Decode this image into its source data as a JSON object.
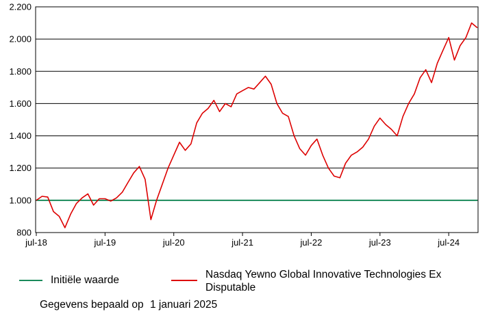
{
  "chart_data": {
    "type": "line",
    "ylim": [
      800,
      2200
    ],
    "y_ticks": [
      800,
      1000,
      1200,
      1400,
      1600,
      1800,
      2000,
      2200
    ],
    "y_tick_labels": [
      "800",
      "1.000",
      "1.200",
      "1.400",
      "1.600",
      "1.800",
      "2.000",
      "2.200"
    ],
    "x_range": [
      "2018-07",
      "2024-12"
    ],
    "x_tick_labels": [
      "jul-18",
      "jul-19",
      "jul-20",
      "jul-21",
      "jul-22",
      "jul-23",
      "jul-24"
    ],
    "grid": "horizontal",
    "series": [
      {
        "name": "Initiële waarde",
        "color": "#1a8a5a",
        "points": [
          [
            "2018-07",
            1000
          ],
          [
            "2024-12",
            1000
          ]
        ]
      },
      {
        "name": "Nasdaq Yewno Global Innovative Technologies Ex Disputable",
        "color": "#dd0000",
        "points": [
          [
            "2018-07",
            1000
          ],
          [
            "2018-08",
            1025
          ],
          [
            "2018-09",
            1020
          ],
          [
            "2018-10",
            930
          ],
          [
            "2018-11",
            900
          ],
          [
            "2018-12",
            830
          ],
          [
            "2019-01",
            915
          ],
          [
            "2019-02",
            980
          ],
          [
            "2019-03",
            1015
          ],
          [
            "2019-04",
            1040
          ],
          [
            "2019-05",
            970
          ],
          [
            "2019-06",
            1010
          ],
          [
            "2019-07",
            1010
          ],
          [
            "2019-08",
            995
          ],
          [
            "2019-09",
            1015
          ],
          [
            "2019-10",
            1050
          ],
          [
            "2019-11",
            1110
          ],
          [
            "2019-12",
            1170
          ],
          [
            "2020-01",
            1210
          ],
          [
            "2020-02",
            1130
          ],
          [
            "2020-03",
            880
          ],
          [
            "2020-04",
            1000
          ],
          [
            "2020-05",
            1100
          ],
          [
            "2020-06",
            1200
          ],
          [
            "2020-07",
            1280
          ],
          [
            "2020-08",
            1360
          ],
          [
            "2020-09",
            1310
          ],
          [
            "2020-10",
            1350
          ],
          [
            "2020-11",
            1480
          ],
          [
            "2020-12",
            1540
          ],
          [
            "2021-01",
            1570
          ],
          [
            "2021-02",
            1620
          ],
          [
            "2021-03",
            1550
          ],
          [
            "2021-04",
            1600
          ],
          [
            "2021-05",
            1580
          ],
          [
            "2021-06",
            1660
          ],
          [
            "2021-07",
            1680
          ],
          [
            "2021-08",
            1700
          ],
          [
            "2021-09",
            1690
          ],
          [
            "2021-10",
            1730
          ],
          [
            "2021-11",
            1770
          ],
          [
            "2021-12",
            1720
          ],
          [
            "2022-01",
            1600
          ],
          [
            "2022-02",
            1540
          ],
          [
            "2022-03",
            1520
          ],
          [
            "2022-04",
            1400
          ],
          [
            "2022-05",
            1320
          ],
          [
            "2022-06",
            1280
          ],
          [
            "2022-07",
            1340
          ],
          [
            "2022-08",
            1380
          ],
          [
            "2022-09",
            1280
          ],
          [
            "2022-10",
            1200
          ],
          [
            "2022-11",
            1150
          ],
          [
            "2022-12",
            1140
          ],
          [
            "2023-01",
            1230
          ],
          [
            "2023-02",
            1280
          ],
          [
            "2023-03",
            1300
          ],
          [
            "2023-04",
            1330
          ],
          [
            "2023-05",
            1380
          ],
          [
            "2023-06",
            1460
          ],
          [
            "2023-07",
            1510
          ],
          [
            "2023-08",
            1470
          ],
          [
            "2023-09",
            1440
          ],
          [
            "2023-10",
            1400
          ],
          [
            "2023-11",
            1520
          ],
          [
            "2023-12",
            1600
          ],
          [
            "2024-01",
            1660
          ],
          [
            "2024-02",
            1760
          ],
          [
            "2024-03",
            1810
          ],
          [
            "2024-04",
            1730
          ],
          [
            "2024-05",
            1850
          ],
          [
            "2024-06",
            1930
          ],
          [
            "2024-07",
            2010
          ],
          [
            "2024-08",
            1870
          ],
          [
            "2024-09",
            1960
          ],
          [
            "2024-10",
            2010
          ],
          [
            "2024-11",
            2100
          ],
          [
            "2024-12",
            2070
          ]
        ]
      }
    ]
  },
  "legend": {
    "items": [
      {
        "label": "Initiële waarde",
        "color": "#1a8a5a"
      },
      {
        "label": "Nasdaq Yewno Global Innovative Technologies Ex Disputable",
        "color": "#dd0000"
      }
    ]
  },
  "footnote": {
    "prefix": "Gegevens bepaald op",
    "date": "1 januari 2025"
  }
}
